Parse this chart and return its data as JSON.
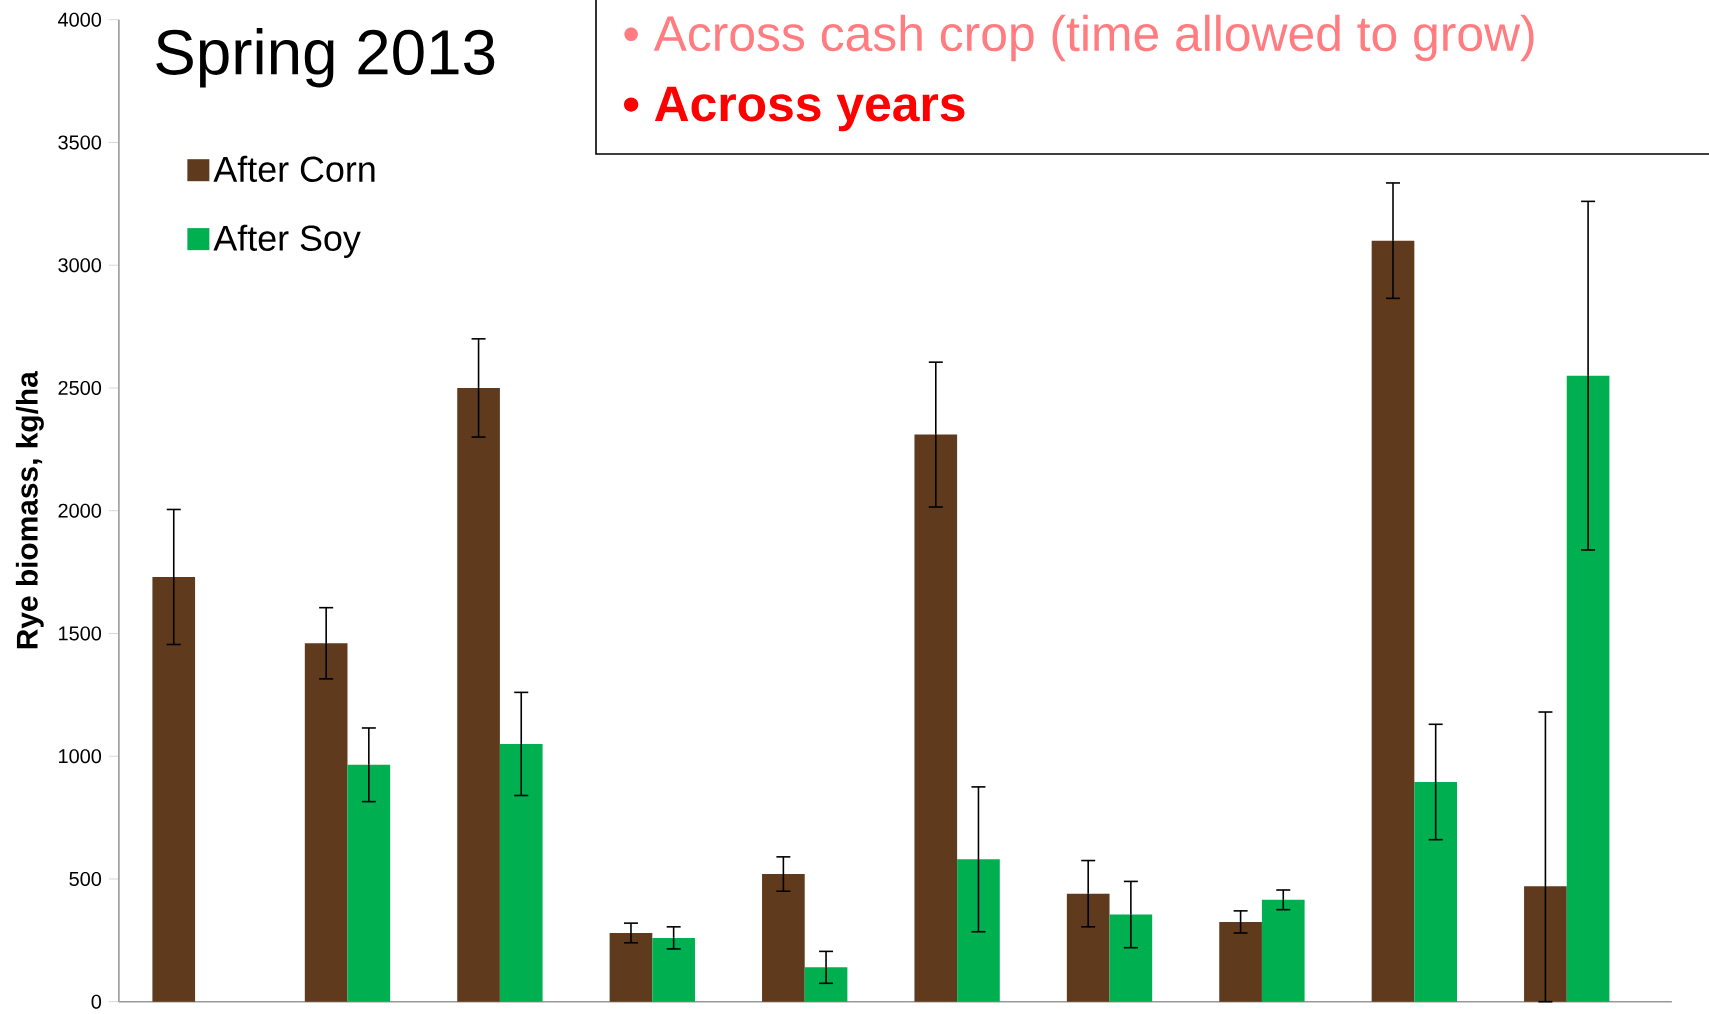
{
  "chart_data": {
    "type": "bar",
    "title": "Spring 2013",
    "ylabel": "Rye biomass, kg/ha",
    "categories": [
      null,
      null,
      null,
      null,
      null,
      null,
      null,
      null,
      null,
      null
    ],
    "series": [
      {
        "name": "After Corn",
        "color": "#603a1c",
        "values": [
          1730,
          1460,
          2500,
          280,
          520,
          2310,
          440,
          325,
          3100,
          470
        ],
        "errors": [
          275,
          145,
          200,
          40,
          70,
          295,
          135,
          45,
          235,
          [
            0,
            1180
          ]
        ]
      },
      {
        "name": "After Soy",
        "color": "#00b050",
        "values": [
          null,
          965,
          1050,
          260,
          140,
          580,
          355,
          415,
          895,
          2550
        ],
        "errors": [
          null,
          150,
          210,
          45,
          65,
          295,
          135,
          40,
          235,
          710
        ]
      }
    ],
    "ylim": [
      0,
      4000
    ],
    "yticks": [
      0,
      500,
      1000,
      1500,
      2000,
      2500,
      3000,
      3500,
      4000
    ],
    "legend": "top left",
    "grid": false,
    "annotations": [
      "•  Across cash crop (time allowed to grow)",
      "•  Across years"
    ]
  }
}
